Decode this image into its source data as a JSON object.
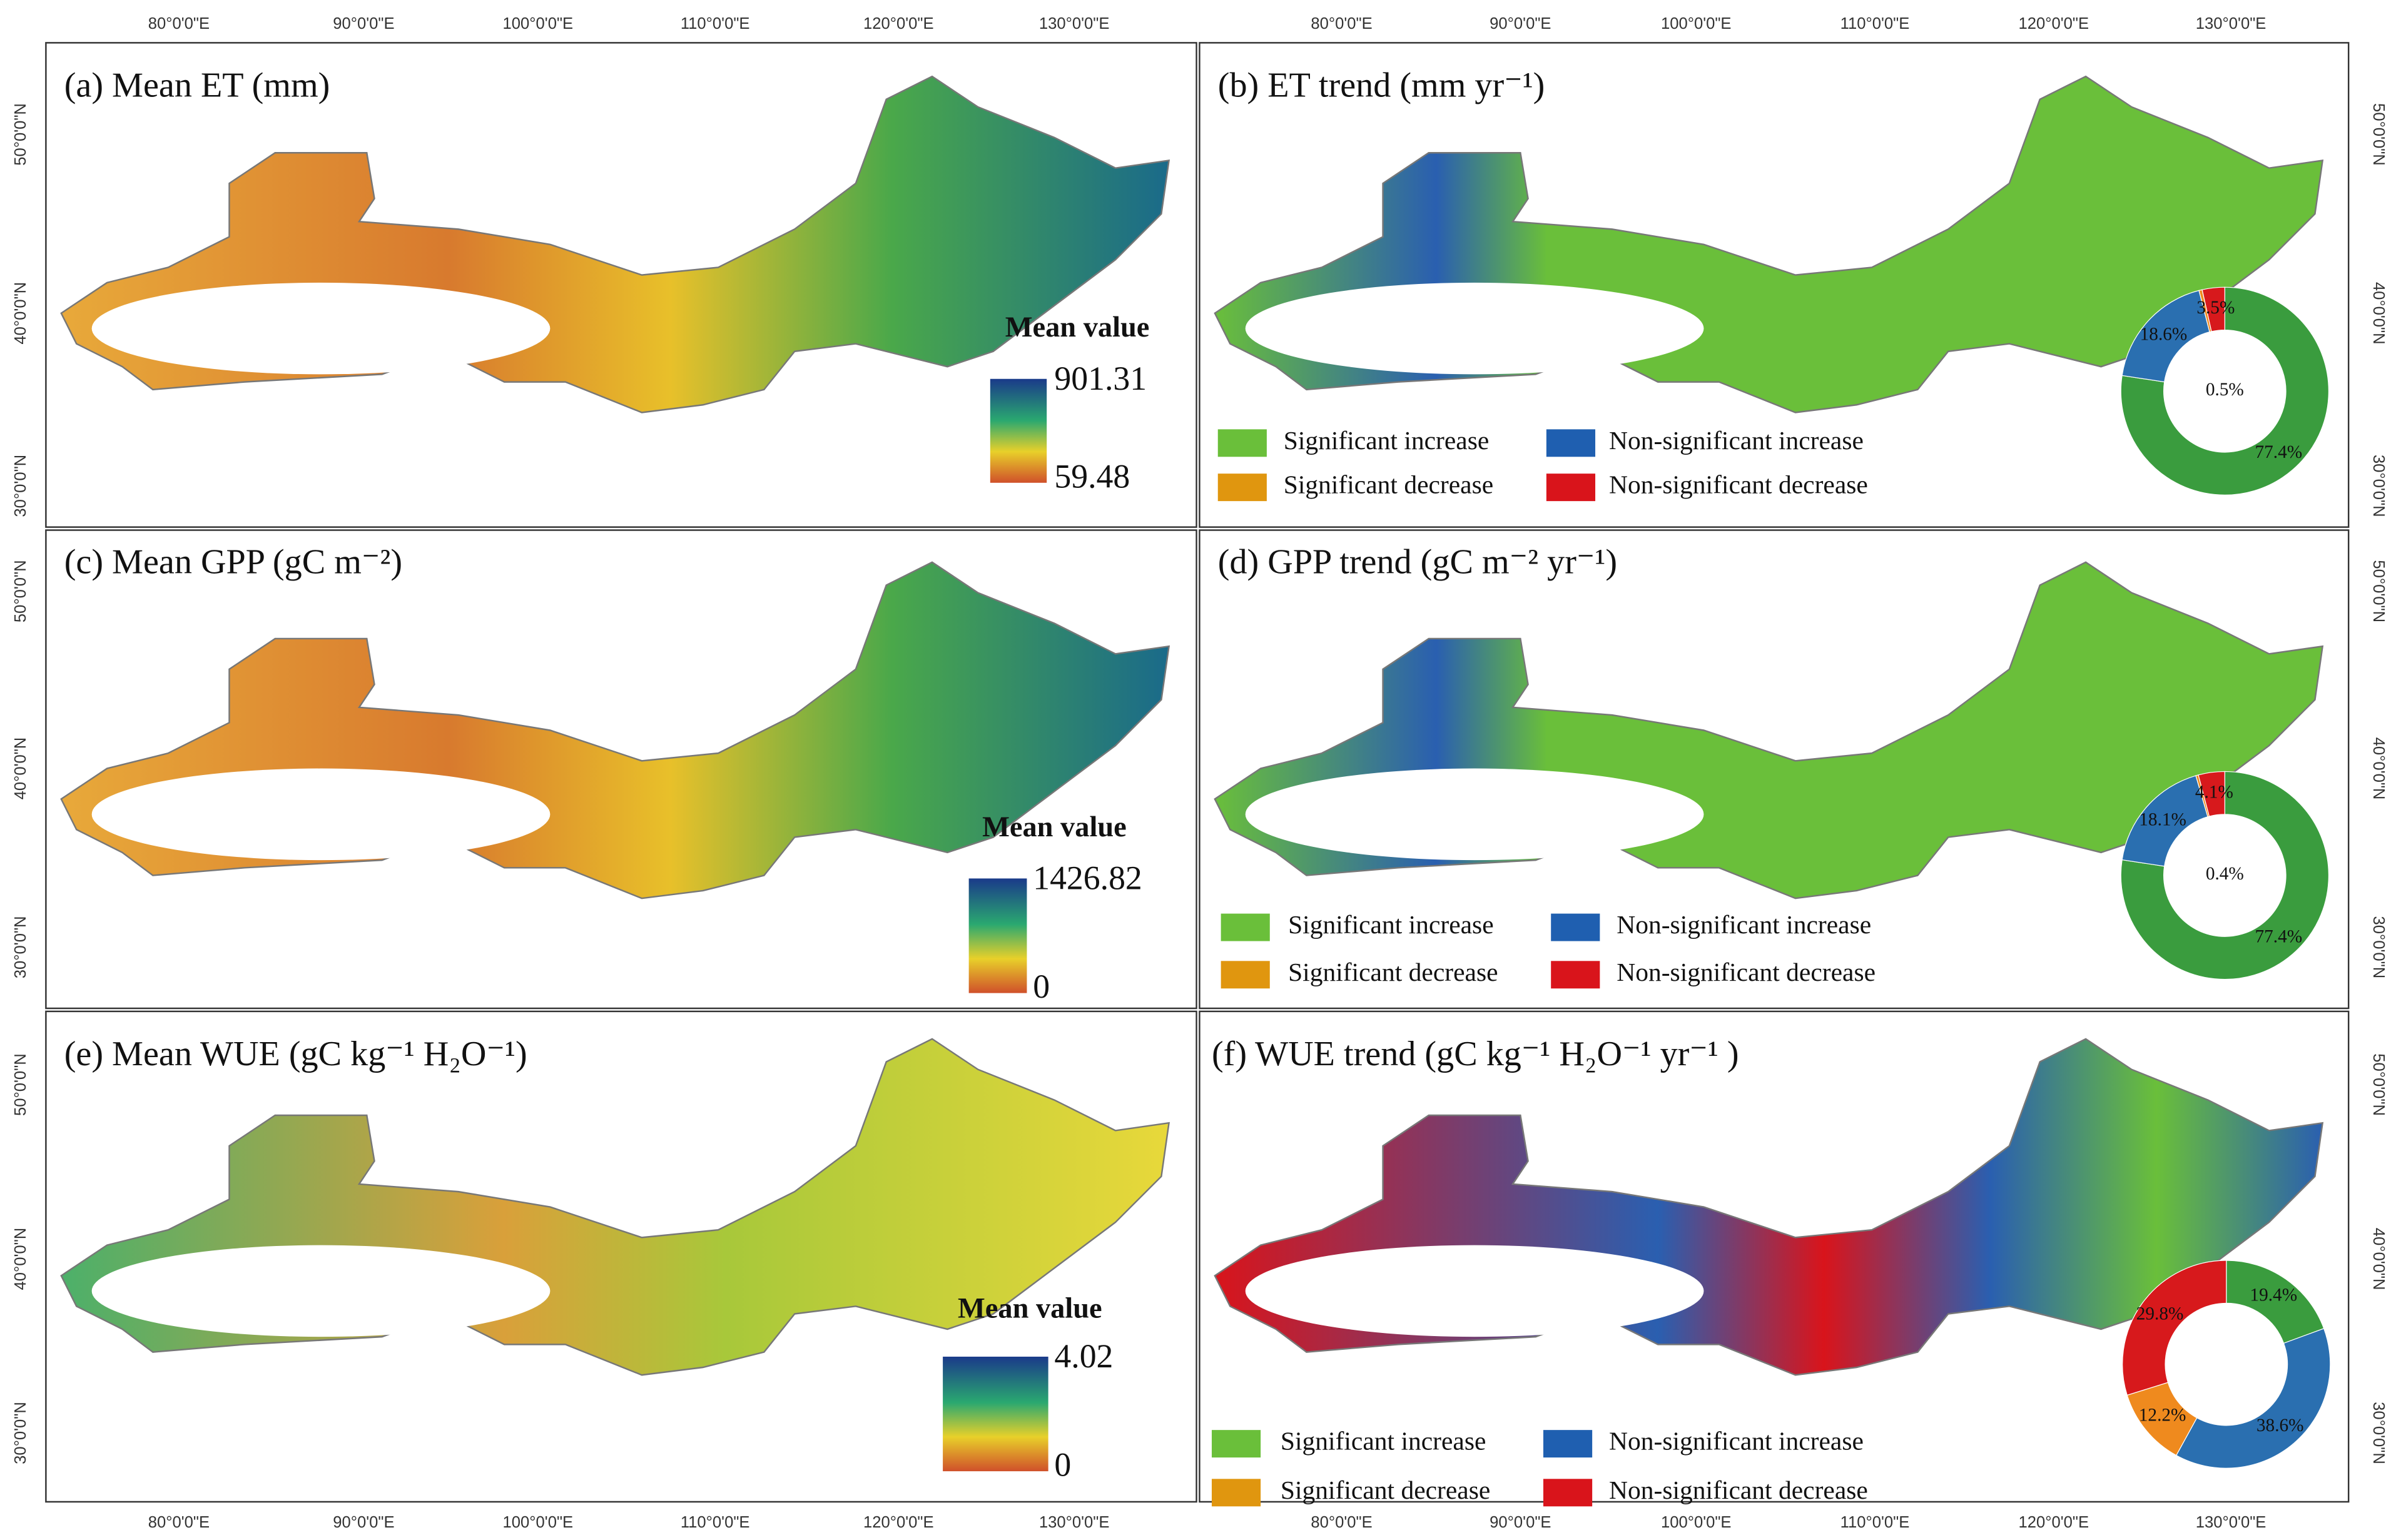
{
  "axes": {
    "lon_labels": [
      "80°0'0\"E",
      "90°0'0\"E",
      "100°0'0\"E",
      "110°0'0\"E",
      "120°0'0\"E",
      "130°0'0\"E"
    ],
    "lat_labels": [
      "50°0'0\"N",
      "40°0'0\"N",
      "30°0'0\"N"
    ]
  },
  "panels": [
    {
      "title": "(a) Mean ET (mm)",
      "colorbar": {
        "title": "Mean value",
        "max": 901.31,
        "min": 59.48
      }
    },
    {
      "title": "(b) ET trend (mm yr⁻¹)",
      "legend": [
        {
          "label": "Significant increase",
          "color": "#6abf3a"
        },
        {
          "label": "Non-significant increase",
          "color": "#1f5fb0"
        },
        {
          "label": "Significant decrease",
          "color": "#e0960f"
        },
        {
          "label": "Non-significant decrease",
          "color": "#d9141b"
        }
      ],
      "donut": {
        "values": [
          77.4,
          18.6,
          0.5,
          3.5
        ],
        "value_labels": [
          "77.4%",
          "18.6%",
          "0.5%",
          "3.5%"
        ],
        "colors": [
          "#3a9c3e",
          "#2a6fb0",
          "#ef8a1e",
          "#d7191c"
        ]
      }
    },
    {
      "title": "(c) Mean GPP (gC m⁻²)",
      "colorbar": {
        "title": "Mean value",
        "max": 1426.82,
        "min": 0
      }
    },
    {
      "title": "(d) GPP trend (gC m⁻² yr⁻¹)",
      "legend": [
        {
          "label": "Significant increase",
          "color": "#6abf3a"
        },
        {
          "label": "Non-significant increase",
          "color": "#1f5fb0"
        },
        {
          "label": "Significant decrease",
          "color": "#e0960f"
        },
        {
          "label": "Non-significant decrease",
          "color": "#d9141b"
        }
      ],
      "donut": {
        "values": [
          77.4,
          18.1,
          0.4,
          4.1
        ],
        "value_labels": [
          "77.4%",
          "18.1%",
          "0.4%",
          "4.1%"
        ],
        "colors": [
          "#3a9c3e",
          "#2a6fb0",
          "#ef8a1e",
          "#d7191c"
        ]
      }
    },
    {
      "title": "(e) Mean WUE (gC kg⁻¹ H₂O⁻¹)",
      "colorbar": {
        "title": "Mean value",
        "max": 4.02,
        "min": 0
      }
    },
    {
      "title": "(f) WUE trend (gC kg⁻¹ H₂O⁻¹ yr⁻¹ )",
      "legend": [
        {
          "label": "Significant increase",
          "color": "#6abf3a"
        },
        {
          "label": "Non-significant increase",
          "color": "#1f5fb0"
        },
        {
          "label": "Significant decrease",
          "color": "#e0960f"
        },
        {
          "label": "Non-significant decrease",
          "color": "#d9141b"
        }
      ],
      "donut": {
        "values": [
          19.4,
          38.6,
          12.2,
          29.8
        ],
        "value_labels": [
          "19.4%",
          "38.6%",
          "12.2%",
          "29.8%"
        ],
        "colors": [
          "#3a9c3e",
          "#2a6fb0",
          "#ef8a1e",
          "#d7191c"
        ]
      }
    }
  ]
}
